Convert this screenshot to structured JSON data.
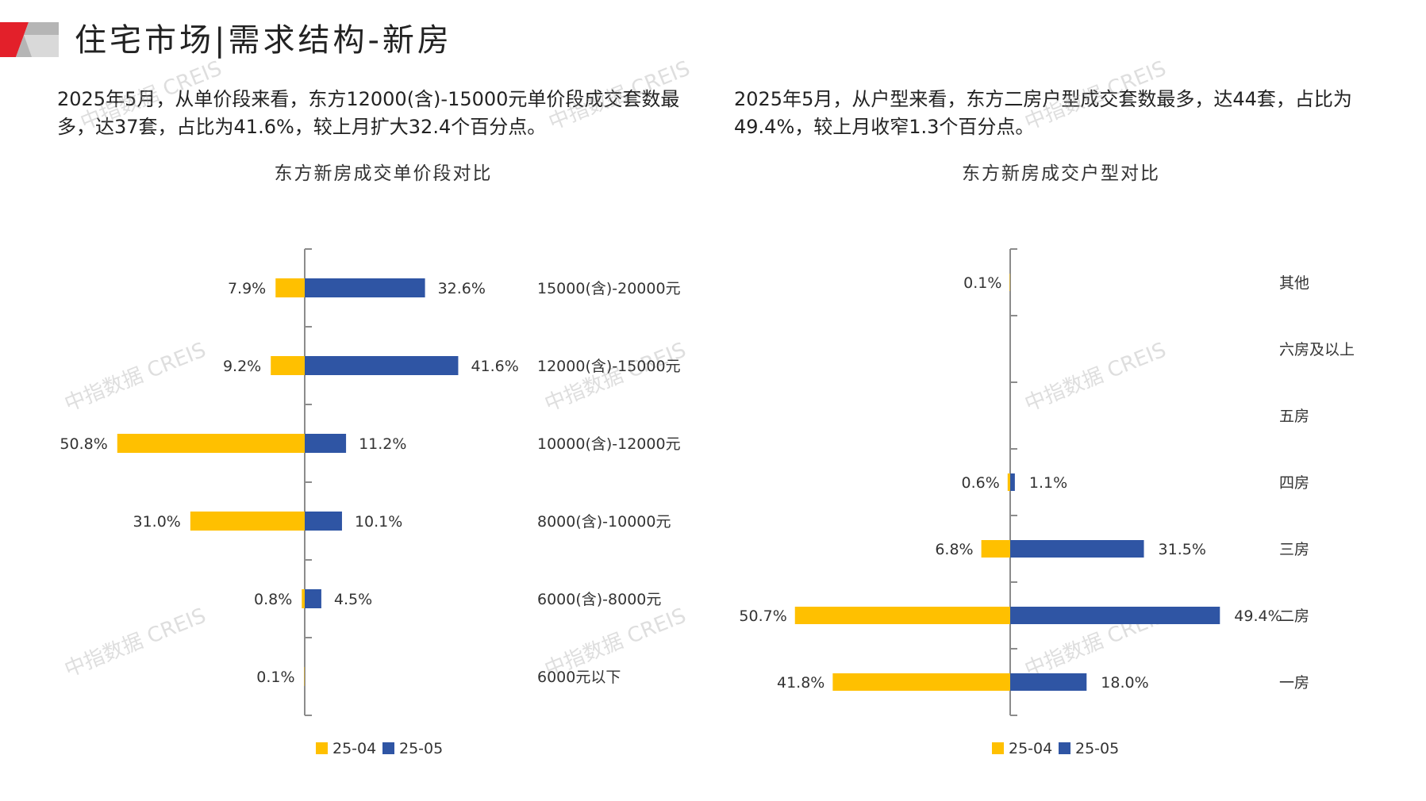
{
  "header": {
    "title": "住宅市场|需求结构-新房"
  },
  "descriptions": {
    "left": "2025年5月，从单价段来看，东方12000(含)-15000元单价段成交套数最多，达37套，占比为41.6%，较上月扩大32.4个百分点。",
    "right": "2025年5月，从户型来看，东方二房户型成交套数最多，达44套，占比为49.4%，较上月收窄1.3个百分点。"
  },
  "watermark": "中指数据 CREIS",
  "colors": {
    "prev": "#FFC000",
    "curr": "#2F55A4",
    "axis": "#8C8C8C",
    "logo_red": "#E3202A",
    "logo_gray": "#9E9E9E"
  },
  "chart_data": [
    {
      "type": "bar",
      "orientation": "horizontal-diverging",
      "title": "东方新房成交单价段对比",
      "categories": [
        "15000(含)-20000元",
        "12000(含)-15000元",
        "10000(含)-12000元",
        "8000(含)-10000元",
        "6000(含)-8000元",
        "6000元以下"
      ],
      "series": [
        {
          "name": "25-04",
          "values": [
            7.9,
            9.2,
            50.8,
            31.0,
            0.8,
            0.1
          ],
          "labels": [
            "7.9%",
            "9.2%",
            "50.8%",
            "31.0%",
            "0.8%",
            "0.1%"
          ]
        },
        {
          "name": "25-05",
          "values": [
            32.6,
            41.6,
            11.2,
            10.1,
            4.5,
            0
          ],
          "labels": [
            "32.6%",
            "41.6%",
            "11.2%",
            "10.1%",
            "4.5%",
            ""
          ]
        }
      ],
      "legend": [
        "25-04",
        "25-05"
      ],
      "legend_position": "bottom-center",
      "unit": "%"
    },
    {
      "type": "bar",
      "orientation": "horizontal-diverging",
      "title": "东方新房成交户型对比",
      "categories": [
        "其他",
        "六房及以上",
        "五房",
        "四房",
        "三房",
        "二房",
        "一房"
      ],
      "series": [
        {
          "name": "25-04",
          "values": [
            0.1,
            0,
            0,
            0.6,
            6.8,
            50.7,
            41.8
          ],
          "labels": [
            "0.1%",
            "",
            "",
            "0.6%",
            "6.8%",
            "50.7%",
            "41.8%"
          ]
        },
        {
          "name": "25-05",
          "values": [
            0,
            0,
            0,
            1.1,
            31.5,
            49.4,
            18.0
          ],
          "labels": [
            "",
            "",
            "",
            "1.1%",
            "31.5%",
            "49.4%",
            "18.0%"
          ]
        }
      ],
      "legend": [
        "25-04",
        "25-05"
      ],
      "legend_position": "bottom-center",
      "unit": "%"
    }
  ]
}
